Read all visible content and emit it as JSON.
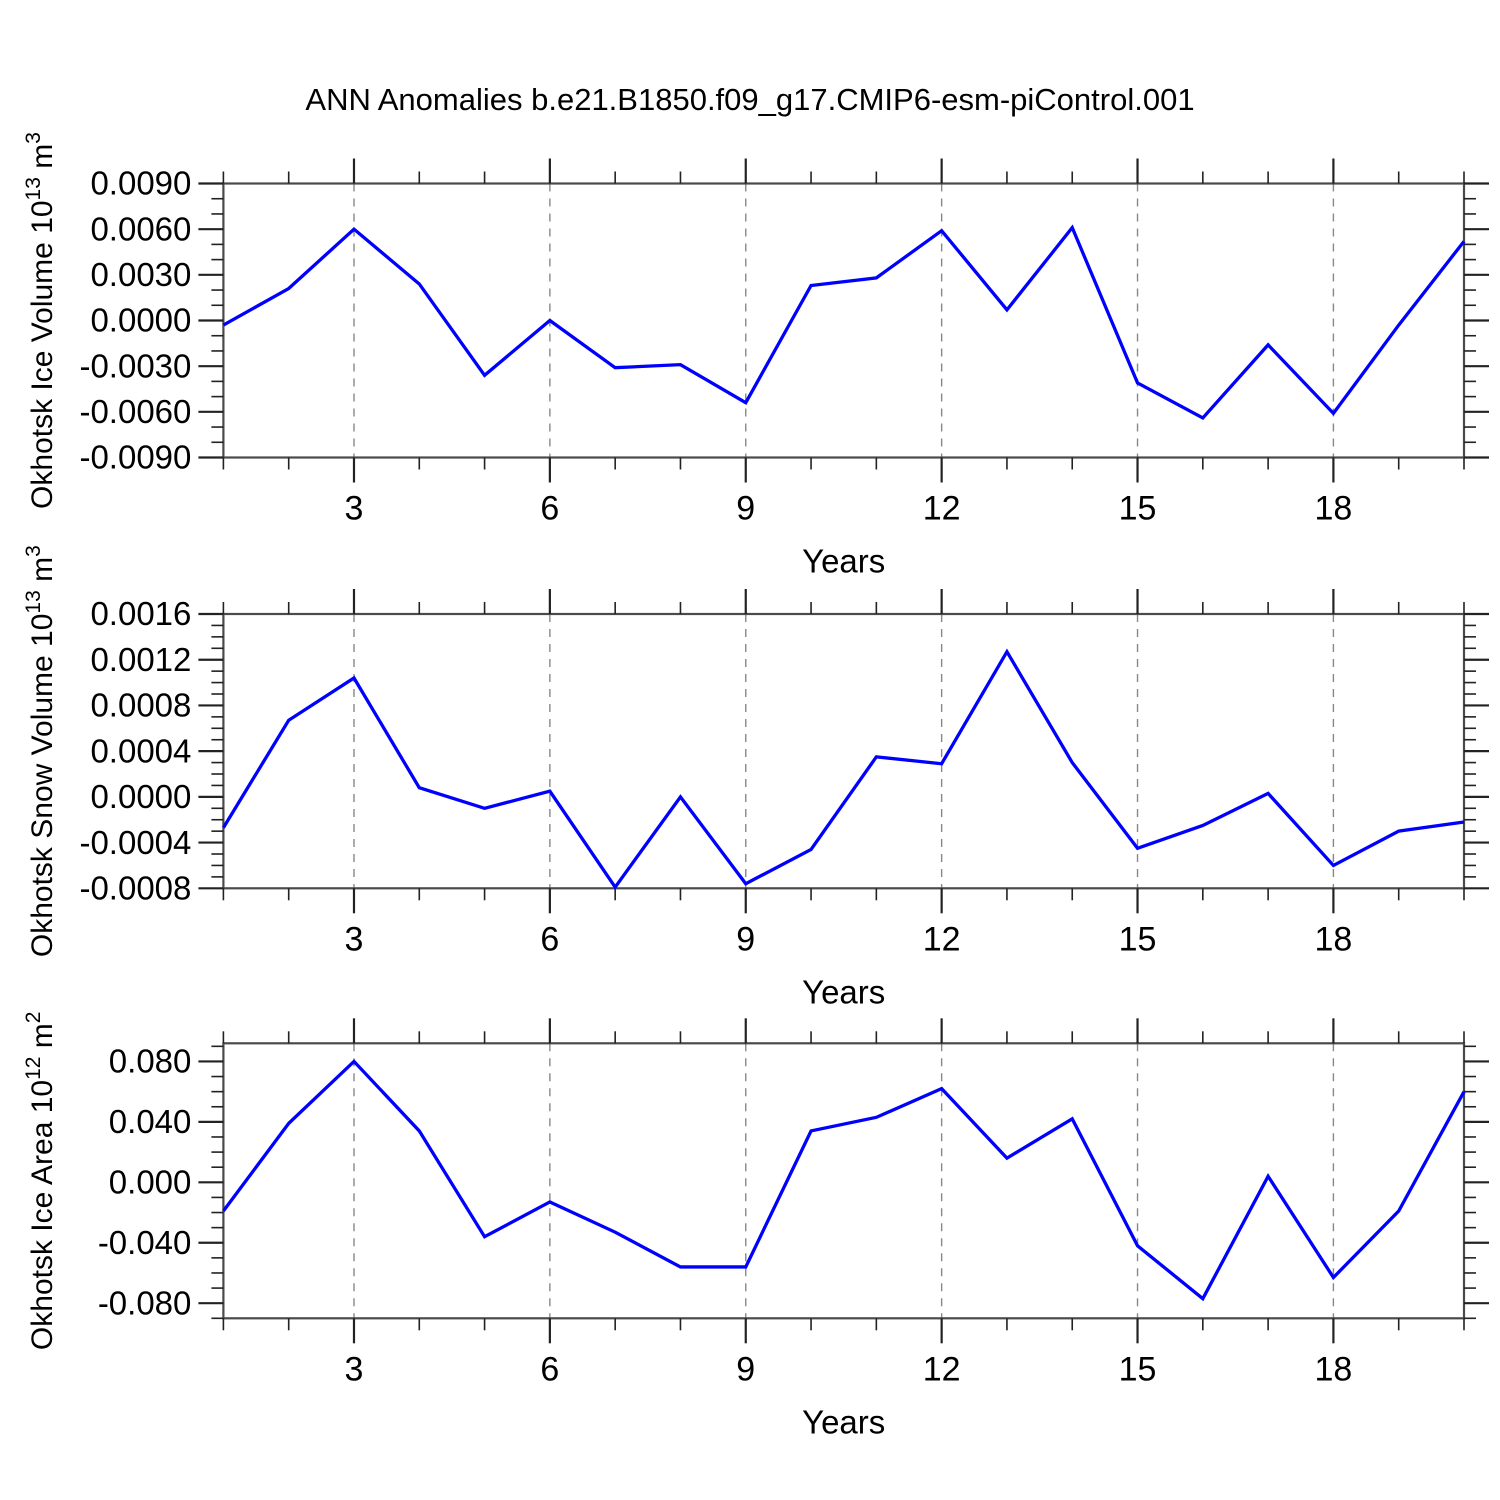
{
  "title": "ANN Anomalies b.e21.B1850.f09_g17.CMIP6-esm-piControl.001",
  "style": {
    "line_color": "#0000ff",
    "frame_color": "#4a4a4a",
    "tick_color": "#222222",
    "grid_color": "#888888",
    "text_color": "#000000"
  },
  "chart_data": [
    {
      "type": "line",
      "name": "ice-volume-chart",
      "ylabel": "Okhotsk Ice Volume 10^13^ m^3^",
      "xlabel": "Years",
      "x": [
        1,
        2,
        3,
        4,
        5,
        6,
        7,
        8,
        9,
        10,
        11,
        12,
        13,
        14,
        15,
        16,
        17,
        18,
        19,
        20
      ],
      "values": [
        -0.0003,
        0.0021,
        0.006,
        0.0024,
        -0.0036,
        0.0,
        -0.0031,
        -0.0029,
        -0.0054,
        0.0023,
        0.0028,
        0.0059,
        0.0007,
        0.0061,
        -0.0041,
        -0.0064,
        -0.0016,
        -0.0061,
        -0.0003,
        0.0052
      ],
      "xlim": [
        1,
        20
      ],
      "ylim": [
        -0.009,
        0.009
      ],
      "xticks_major": [
        3,
        6,
        9,
        12,
        15,
        18
      ],
      "xminor_step": 1,
      "yticks_major": [
        0.009,
        0.006,
        0.003,
        0.0,
        -0.003,
        -0.006,
        -0.009
      ],
      "yminor_step": 0.001,
      "ytick_decimals": 4,
      "grid": "vertical-dashed",
      "legend": "none"
    },
    {
      "type": "line",
      "name": "snow-volume-chart",
      "ylabel": "Okhotsk Snow Volume 10^13^ m^3^",
      "xlabel": "Years",
      "x": [
        1,
        2,
        3,
        4,
        5,
        6,
        7,
        8,
        9,
        10,
        11,
        12,
        13,
        14,
        15,
        16,
        17,
        18,
        19,
        20
      ],
      "values": [
        -0.00027,
        0.00067,
        0.00104,
        8e-05,
        -0.0001,
        5e-05,
        -0.00079,
        0.0,
        -0.00076,
        -0.00046,
        0.00035,
        0.00029,
        0.00127,
        0.0003,
        -0.00045,
        -0.00025,
        3e-05,
        -0.0006,
        -0.0003,
        -0.00022
      ],
      "xlim": [
        1,
        20
      ],
      "ylim": [
        -0.0008,
        0.0016
      ],
      "xticks_major": [
        3,
        6,
        9,
        12,
        15,
        18
      ],
      "xminor_step": 1,
      "yticks_major": [
        0.0016,
        0.0012,
        0.0008,
        0.0004,
        0.0,
        -0.0004,
        -0.0008
      ],
      "yminor_step": 0.0001,
      "ytick_decimals": 4,
      "grid": "vertical-dashed",
      "legend": "none"
    },
    {
      "type": "line",
      "name": "ice-area-chart",
      "ylabel": "Okhotsk Ice Area 10^12^ m^2^",
      "xlabel": "Years",
      "x": [
        1,
        2,
        3,
        4,
        5,
        6,
        7,
        8,
        9,
        10,
        11,
        12,
        13,
        14,
        15,
        16,
        17,
        18,
        19,
        20
      ],
      "values": [
        -0.019,
        0.039,
        0.08,
        0.034,
        -0.036,
        -0.013,
        -0.033,
        -0.056,
        -0.056,
        0.034,
        0.043,
        0.062,
        0.016,
        0.042,
        -0.042,
        -0.077,
        0.004,
        -0.063,
        -0.019,
        0.06
      ],
      "xlim": [
        1,
        20
      ],
      "ylim": [
        -0.09,
        0.092
      ],
      "xticks_major": [
        3,
        6,
        9,
        12,
        15,
        18
      ],
      "xminor_step": 1,
      "yticks_major": [
        0.08,
        0.04,
        0.0,
        -0.04,
        -0.08
      ],
      "yminor_step": 0.01,
      "ytick_decimals": 3,
      "grid": "vertical-dashed",
      "legend": "none"
    }
  ]
}
